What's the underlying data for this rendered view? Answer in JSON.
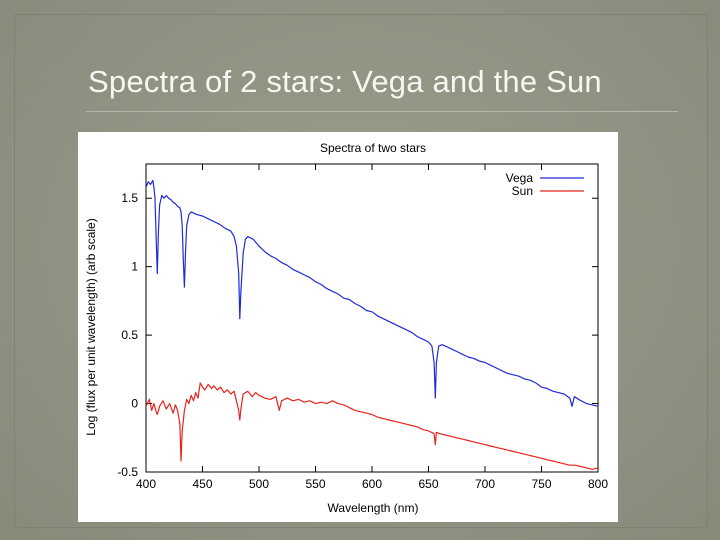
{
  "slide": {
    "title": "Spectra of 2 stars: Vega and the Sun"
  },
  "chart_data": {
    "type": "line",
    "title": "Spectra of two stars",
    "xlabel": "Wavelength (nm)",
    "ylabel": "Log (flux per unit wavelength) (arb scale)",
    "xlim": [
      400,
      800
    ],
    "ylim": [
      -0.5,
      1.75
    ],
    "xticks": [
      400,
      450,
      500,
      550,
      600,
      650,
      700,
      750,
      800
    ],
    "yticks": [
      -0.5,
      0,
      0.5,
      1,
      1.5
    ],
    "ytick_labels": [
      "-0.5",
      "0",
      "0.5",
      "1",
      "1.5"
    ],
    "grid": false,
    "legend_position": "top-right",
    "series": [
      {
        "name": "Vega",
        "color": "#1f2bd6",
        "points": [
          [
            400,
            1.58
          ],
          [
            402,
            1.62
          ],
          [
            404,
            1.6
          ],
          [
            406,
            1.63
          ],
          [
            407,
            1.58
          ],
          [
            408,
            1.5
          ],
          [
            409,
            1.2
          ],
          [
            410,
            0.95
          ],
          [
            411,
            1.25
          ],
          [
            412,
            1.45
          ],
          [
            414,
            1.52
          ],
          [
            416,
            1.5
          ],
          [
            418,
            1.52
          ],
          [
            420,
            1.5
          ],
          [
            422,
            1.49
          ],
          [
            424,
            1.47
          ],
          [
            426,
            1.46
          ],
          [
            428,
            1.44
          ],
          [
            430,
            1.43
          ],
          [
            431,
            1.4
          ],
          [
            432,
            1.3
          ],
          [
            433,
            1.05
          ],
          [
            434,
            0.85
          ],
          [
            435,
            1.1
          ],
          [
            436,
            1.3
          ],
          [
            438,
            1.38
          ],
          [
            440,
            1.4
          ],
          [
            445,
            1.38
          ],
          [
            450,
            1.37
          ],
          [
            455,
            1.35
          ],
          [
            460,
            1.33
          ],
          [
            465,
            1.31
          ],
          [
            470,
            1.28
          ],
          [
            475,
            1.26
          ],
          [
            478,
            1.22
          ],
          [
            480,
            1.15
          ],
          [
            482,
            0.95
          ],
          [
            483,
            0.62
          ],
          [
            484,
            0.82
          ],
          [
            486,
            1.1
          ],
          [
            488,
            1.2
          ],
          [
            490,
            1.22
          ],
          [
            495,
            1.2
          ],
          [
            500,
            1.15
          ],
          [
            505,
            1.11
          ],
          [
            510,
            1.08
          ],
          [
            515,
            1.06
          ],
          [
            520,
            1.03
          ],
          [
            525,
            1.01
          ],
          [
            530,
            0.98
          ],
          [
            535,
            0.96
          ],
          [
            540,
            0.94
          ],
          [
            545,
            0.92
          ],
          [
            550,
            0.89
          ],
          [
            555,
            0.87
          ],
          [
            560,
            0.84
          ],
          [
            565,
            0.82
          ],
          [
            570,
            0.8
          ],
          [
            575,
            0.77
          ],
          [
            580,
            0.76
          ],
          [
            585,
            0.73
          ],
          [
            590,
            0.71
          ],
          [
            595,
            0.68
          ],
          [
            600,
            0.67
          ],
          [
            605,
            0.64
          ],
          [
            610,
            0.62
          ],
          [
            615,
            0.6
          ],
          [
            620,
            0.58
          ],
          [
            625,
            0.56
          ],
          [
            630,
            0.54
          ],
          [
            635,
            0.52
          ],
          [
            640,
            0.49
          ],
          [
            645,
            0.47
          ],
          [
            650,
            0.45
          ],
          [
            653,
            0.42
          ],
          [
            655,
            0.3
          ],
          [
            656,
            0.04
          ],
          [
            657,
            0.3
          ],
          [
            659,
            0.42
          ],
          [
            662,
            0.43
          ],
          [
            665,
            0.42
          ],
          [
            670,
            0.4
          ],
          [
            675,
            0.38
          ],
          [
            680,
            0.36
          ],
          [
            685,
            0.34
          ],
          [
            690,
            0.33
          ],
          [
            695,
            0.31
          ],
          [
            700,
            0.3
          ],
          [
            705,
            0.28
          ],
          [
            710,
            0.26
          ],
          [
            715,
            0.24
          ],
          [
            720,
            0.22
          ],
          [
            725,
            0.21
          ],
          [
            730,
            0.2
          ],
          [
            735,
            0.18
          ],
          [
            740,
            0.17
          ],
          [
            745,
            0.15
          ],
          [
            750,
            0.12
          ],
          [
            755,
            0.11
          ],
          [
            760,
            0.09
          ],
          [
            765,
            0.08
          ],
          [
            770,
            0.07
          ],
          [
            775,
            0.04
          ],
          [
            777,
            -0.02
          ],
          [
            779,
            0.05
          ],
          [
            785,
            0.02
          ],
          [
            790,
            0.0
          ],
          [
            795,
            -0.01
          ],
          [
            800,
            -0.02
          ]
        ]
      },
      {
        "name": "Sun",
        "color": "#e8231b",
        "points": [
          [
            400,
            -0.02
          ],
          [
            403,
            0.03
          ],
          [
            405,
            -0.05
          ],
          [
            407,
            0.0
          ],
          [
            409,
            -0.06
          ],
          [
            410,
            -0.08
          ],
          [
            412,
            -0.02
          ],
          [
            415,
            0.02
          ],
          [
            418,
            -0.04
          ],
          [
            421,
            0.0
          ],
          [
            424,
            -0.07
          ],
          [
            426,
            -0.01
          ],
          [
            428,
            -0.05
          ],
          [
            430,
            -0.15
          ],
          [
            431,
            -0.42
          ],
          [
            432,
            -0.2
          ],
          [
            434,
            -0.05
          ],
          [
            436,
            0.03
          ],
          [
            438,
            0.0
          ],
          [
            440,
            0.06
          ],
          [
            442,
            0.02
          ],
          [
            444,
            0.08
          ],
          [
            446,
            0.04
          ],
          [
            448,
            0.15
          ],
          [
            450,
            0.12
          ],
          [
            452,
            0.1
          ],
          [
            455,
            0.14
          ],
          [
            458,
            0.11
          ],
          [
            460,
            0.13
          ],
          [
            463,
            0.1
          ],
          [
            466,
            0.12
          ],
          [
            469,
            0.08
          ],
          [
            472,
            0.1
          ],
          [
            475,
            0.07
          ],
          [
            478,
            0.09
          ],
          [
            480,
            0.02
          ],
          [
            482,
            -0.05
          ],
          [
            483,
            -0.12
          ],
          [
            484,
            -0.04
          ],
          [
            486,
            0.07
          ],
          [
            490,
            0.09
          ],
          [
            494,
            0.05
          ],
          [
            497,
            0.08
          ],
          [
            500,
            0.06
          ],
          [
            505,
            0.04
          ],
          [
            510,
            0.03
          ],
          [
            515,
            0.05
          ],
          [
            518,
            -0.05
          ],
          [
            520,
            0.02
          ],
          [
            525,
            0.04
          ],
          [
            530,
            0.02
          ],
          [
            535,
            0.03
          ],
          [
            540,
            0.01
          ],
          [
            545,
            0.02
          ],
          [
            550,
            0.0
          ],
          [
            555,
            0.01
          ],
          [
            560,
            0.0
          ],
          [
            565,
            0.02
          ],
          [
            570,
            0.0
          ],
          [
            575,
            -0.01
          ],
          [
            580,
            -0.03
          ],
          [
            585,
            -0.05
          ],
          [
            590,
            -0.06
          ],
          [
            595,
            -0.07
          ],
          [
            600,
            -0.08
          ],
          [
            605,
            -0.1
          ],
          [
            610,
            -0.11
          ],
          [
            615,
            -0.12
          ],
          [
            620,
            -0.13
          ],
          [
            625,
            -0.14
          ],
          [
            630,
            -0.15
          ],
          [
            635,
            -0.16
          ],
          [
            640,
            -0.17
          ],
          [
            645,
            -0.19
          ],
          [
            650,
            -0.2
          ],
          [
            655,
            -0.22
          ],
          [
            656,
            -0.3
          ],
          [
            657,
            -0.21
          ],
          [
            660,
            -0.22
          ],
          [
            665,
            -0.23
          ],
          [
            670,
            -0.24
          ],
          [
            675,
            -0.25
          ],
          [
            680,
            -0.26
          ],
          [
            685,
            -0.27
          ],
          [
            690,
            -0.28
          ],
          [
            695,
            -0.29
          ],
          [
            700,
            -0.3
          ],
          [
            705,
            -0.31
          ],
          [
            710,
            -0.32
          ],
          [
            715,
            -0.33
          ],
          [
            720,
            -0.34
          ],
          [
            725,
            -0.35
          ],
          [
            730,
            -0.36
          ],
          [
            735,
            -0.37
          ],
          [
            740,
            -0.38
          ],
          [
            745,
            -0.39
          ],
          [
            750,
            -0.4
          ],
          [
            755,
            -0.41
          ],
          [
            760,
            -0.42
          ],
          [
            765,
            -0.43
          ],
          [
            770,
            -0.44
          ],
          [
            775,
            -0.45
          ],
          [
            780,
            -0.45
          ],
          [
            785,
            -0.46
          ],
          [
            790,
            -0.47
          ],
          [
            795,
            -0.48
          ],
          [
            800,
            -0.47
          ]
        ]
      }
    ]
  }
}
